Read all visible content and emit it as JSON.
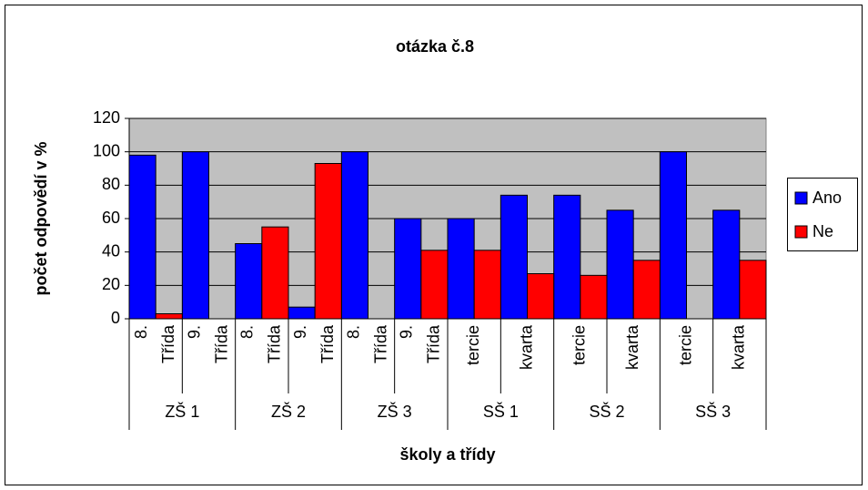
{
  "chart_data": {
    "type": "bar",
    "title": "otázka č.8",
    "x_label": "školy a třídy",
    "y_label": "počet odpovědí v %",
    "categories": [
      [
        "8.",
        "Třída"
      ],
      [
        "9.",
        "Třída"
      ],
      [
        "8.",
        "Třída"
      ],
      [
        "9.",
        "Třída"
      ],
      [
        "8.",
        "Třída"
      ],
      [
        "9.",
        "Třída"
      ],
      [
        "tercie"
      ],
      [
        "kvarta"
      ],
      [
        "tercie"
      ],
      [
        "kvarta"
      ],
      [
        "tercie"
      ],
      [
        "kvarta"
      ]
    ],
    "groups": [
      "ZŠ 1",
      "ZŠ 2",
      "ZŠ 3",
      "SŠ 1",
      "SŠ 2",
      "SŠ 3"
    ],
    "series": [
      {
        "name": "Ano",
        "color": "#0000ff",
        "values": [
          98,
          100,
          45,
          7,
          100,
          60,
          60,
          74,
          74,
          65,
          100,
          65
        ]
      },
      {
        "name": "Ne",
        "color": "#ff0000",
        "values": [
          3,
          0,
          55,
          93,
          0,
          41,
          41,
          27,
          26,
          35,
          0,
          35
        ]
      }
    ],
    "ylim": [
      0,
      120
    ],
    "yticks": [
      0,
      20,
      40,
      60,
      80,
      100,
      120
    ],
    "grid": true,
    "legend": "right",
    "plot_background": "#c0c0c0"
  }
}
